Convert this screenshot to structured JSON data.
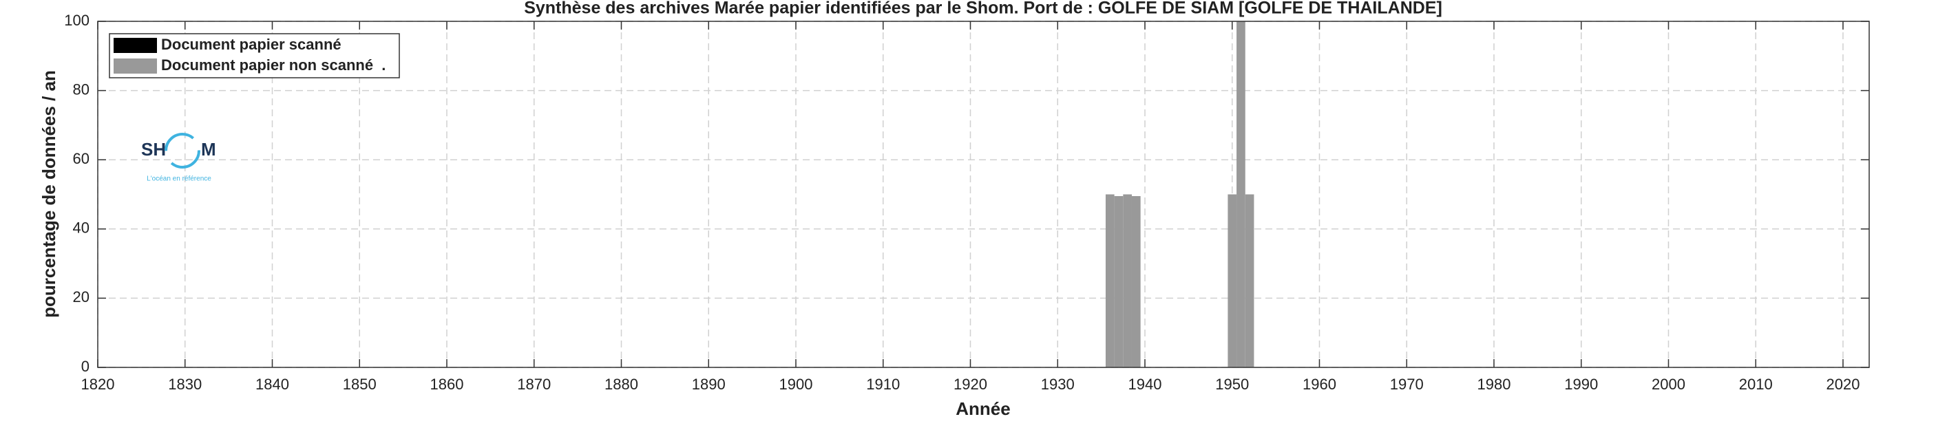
{
  "chart_data": {
    "type": "bar",
    "title": "Synthèse des archives Marée papier identifiées par le Shom. Port de : GOLFE DE SIAM [GOLFE DE THAILANDE]",
    "x_label": "Année",
    "y_label": "pourcentage de données / an",
    "x": [
      1936,
      1937,
      1938,
      1939,
      1950,
      1951,
      1952
    ],
    "series": [
      {
        "name": "Document papier scanné",
        "color": "#000000",
        "values": [
          0,
          0,
          0,
          0,
          0,
          0,
          0
        ]
      },
      {
        "name": "Document papier non scanné  .",
        "color": "#999999",
        "values": [
          50,
          49.5,
          50,
          49.5,
          50,
          100,
          50
        ]
      }
    ],
    "xlim": [
      1820,
      2023
    ],
    "xticks": [
      1820,
      1830,
      1840,
      1850,
      1860,
      1870,
      1880,
      1890,
      1900,
      1910,
      1920,
      1930,
      1940,
      1950,
      1960,
      1970,
      1980,
      1990,
      2000,
      2010,
      2020
    ],
    "ylim": [
      0,
      100
    ],
    "yticks": [
      0,
      20,
      40,
      60,
      80,
      100
    ],
    "grid": true,
    "legend": "upper left",
    "logo": {
      "left": "SH",
      "right": "M",
      "tagline": "L'océan en référence"
    }
  }
}
